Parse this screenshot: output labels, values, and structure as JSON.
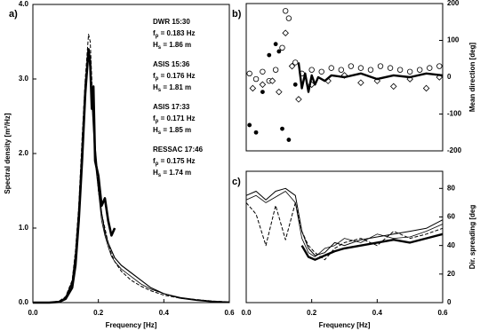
{
  "chart_data": [
    {
      "type": "line",
      "panel": "a)",
      "ylabel": "Spectral density [m²/Hz]",
      "xlabel": "Frequency  [Hz]",
      "xlim": [
        0,
        0.6
      ],
      "xticks": [
        {
          "value": 0,
          "label": "0.0"
        },
        0.2,
        0.4,
        0.6
      ],
      "ylim": [
        0,
        4
      ],
      "yticks": [
        {
          "value": 0,
          "label": "0.0"
        },
        {
          "value": 1,
          "label": "1.0"
        },
        {
          "value": 2,
          "label": "2.0"
        },
        {
          "value": 3,
          "label": "3.0"
        },
        {
          "value": 4,
          "label": "4.0"
        }
      ],
      "x": [
        0,
        0.05,
        0.08,
        0.1,
        0.12,
        0.13,
        0.14,
        0.15,
        0.16,
        0.17,
        0.175,
        0.18,
        0.185,
        0.19,
        0.2,
        0.21,
        0.22,
        0.23,
        0.24,
        0.25,
        0.27,
        0.3,
        0.33,
        0.36,
        0.4,
        0.45,
        0.5,
        0.55,
        0.6
      ],
      "series": [
        {
          "color": "#000000",
          "width": 1,
          "dash": true,
          "values": [
            0,
            0,
            0.02,
            0.08,
            0.3,
            0.7,
            1.3,
            2.2,
            3.0,
            3.6,
            3.5,
            3.0,
            2.4,
            2.0,
            1.5,
            1.2,
            1.0,
            0.8,
            0.65,
            0.55,
            0.42,
            0.3,
            0.22,
            0.16,
            0.1,
            0.06,
            0.04,
            0.02,
            0.01
          ]
        },
        {
          "color": "#000000",
          "width": 2.6,
          "dash": false,
          "values": [
            0,
            0,
            0.01,
            0.05,
            0.2,
            0.5,
            1.1,
            1.9,
            2.8,
            3.4,
            3.2,
            2.6,
            2.9,
            1.9,
            1.7,
            1.3,
            1.4,
            1.1,
            0.9,
            1.0,
            null,
            null,
            null,
            null,
            null,
            null,
            null,
            null,
            null
          ]
        },
        {
          "color": "#000000",
          "width": 0.8,
          "dash": false,
          "values": [
            0,
            0,
            0.01,
            0.06,
            0.25,
            0.6,
            1.2,
            2.0,
            2.9,
            3.3,
            3.1,
            2.7,
            2.3,
            1.9,
            1.5,
            1.1,
            0.9,
            0.75,
            0.62,
            0.55,
            0.45,
            0.35,
            0.25,
            0.18,
            0.12,
            0.07,
            0.04,
            0.02,
            0.01
          ]
        },
        {
          "color": "#000000",
          "width": 1.2,
          "dash": false,
          "values": [
            0,
            0,
            0.01,
            0.07,
            0.28,
            0.65,
            1.25,
            2.1,
            2.95,
            3.35,
            3.3,
            2.8,
            2.5,
            2.1,
            1.6,
            1.2,
            0.95,
            0.8,
            0.7,
            0.6,
            0.5,
            0.4,
            0.3,
            0.2,
            0.12,
            0.06,
            0.03,
            0.01,
            0.01
          ]
        }
      ],
      "annotations": [
        {
          "title": "DWR 15:30",
          "lines": [
            {
              "sym": "f",
              "sub": "p",
              "text": " = 0.183 Hz"
            },
            {
              "sym": "H",
              "sub": "s",
              "text": " = 1.86 m"
            }
          ]
        },
        {
          "title": "ASIS 15:36",
          "lines": [
            {
              "sym": "f",
              "sub": "p",
              "text": " = 0.176 Hz"
            },
            {
              "sym": "H",
              "sub": "s",
              "text": " = 1.81 m"
            }
          ]
        },
        {
          "title": "ASIS 17:33",
          "lines": [
            {
              "sym": "f",
              "sub": "p",
              "text": " = 0.171 Hz"
            },
            {
              "sym": "H",
              "sub": "s",
              "text": " = 1.85 m"
            }
          ]
        },
        {
          "title": "RESSAC 17:46",
          "lines": [
            {
              "sym": "f",
              "sub": "p",
              "text": " = 0.175 Hz"
            },
            {
              "sym": "H",
              "sub": "s",
              "text": " = 1.74 m"
            }
          ]
        }
      ]
    },
    {
      "type": "scatter",
      "panel": "b)",
      "ylabel": "Mean direction [deg]",
      "xlim": [
        0,
        0.6
      ],
      "ylim": [
        -200,
        200
      ],
      "yticks": [
        200,
        100,
        0,
        -100,
        -200
      ],
      "series": [
        {
          "marker": "circle-open",
          "color": "#000000",
          "x": [
            0.01,
            0.03,
            0.05,
            0.07,
            0.09,
            0.11,
            0.12,
            0.13,
            0.15,
            0.17,
            0.2,
            0.23,
            0.26,
            0.29,
            0.32,
            0.35,
            0.38,
            0.41,
            0.44,
            0.47,
            0.5,
            0.53,
            0.56,
            0.59
          ],
          "values": [
            10,
            -5,
            15,
            -10,
            20,
            80,
            180,
            160,
            40,
            10,
            20,
            15,
            25,
            20,
            30,
            25,
            20,
            30,
            25,
            20,
            15,
            20,
            25,
            30
          ]
        },
        {
          "marker": "diamond-open",
          "color": "#000000",
          "x": [
            0.02,
            0.05,
            0.08,
            0.1,
            0.12,
            0.14,
            0.16,
            0.2,
            0.25,
            0.3,
            0.35,
            0.4,
            0.45,
            0.5,
            0.55,
            0.59
          ],
          "values": [
            -30,
            -20,
            -10,
            -40,
            120,
            30,
            -60,
            -20,
            -10,
            5,
            -15,
            -10,
            -25,
            -5,
            -30,
            0
          ]
        },
        {
          "marker": "dot",
          "color": "#000000",
          "x": [
            0.01,
            0.03,
            0.05,
            0.07,
            0.09,
            0.1,
            0.11,
            0.13,
            0.15
          ],
          "values": [
            -130,
            -150,
            -40,
            60,
            90,
            70,
            -140,
            -170,
            -20
          ]
        },
        {
          "marker": "line",
          "color": "#000000",
          "width": 2.4,
          "x": [
            0.16,
            0.17,
            0.18,
            0.19,
            0.2,
            0.21,
            0.22,
            0.24,
            0.26,
            0.3,
            0.35,
            0.4,
            0.45,
            0.5,
            0.55,
            0.6
          ],
          "values": [
            40,
            -30,
            10,
            -40,
            5,
            -20,
            0,
            -10,
            5,
            0,
            10,
            -5,
            5,
            0,
            10,
            5
          ]
        }
      ]
    },
    {
      "type": "line",
      "panel": "c)",
      "ylabel": "Dir. spreading [deg",
      "xlabel": "Frequency  [Hz]",
      "xlim": [
        0,
        0.6
      ],
      "xticks": [
        {
          "value": 0,
          "label": "0.0"
        },
        0.2,
        0.4,
        0.6
      ],
      "ylim": [
        0,
        92
      ],
      "yticks": [
        0,
        20,
        40,
        60,
        80
      ],
      "x": [
        0,
        0.03,
        0.06,
        0.09,
        0.12,
        0.15,
        0.17,
        0.19,
        0.21,
        0.24,
        0.27,
        0.3,
        0.35,
        0.4,
        0.45,
        0.5,
        0.55,
        0.6
      ],
      "series": [
        {
          "color": "#000000",
          "width": 0.8,
          "dash": false,
          "values": [
            72,
            75,
            70,
            74,
            78,
            70,
            45,
            35,
            32,
            38,
            40,
            45,
            42,
            48,
            45,
            46,
            50,
            55
          ]
        },
        {
          "color": "#000000",
          "width": 1,
          "dash": true,
          "values": [
            70,
            62,
            40,
            68,
            44,
            70,
            50,
            40,
            35,
            30,
            38,
            42,
            45,
            40,
            50,
            45,
            48,
            52
          ]
        },
        {
          "color": "#000000",
          "width": 2.4,
          "dash": false,
          "values": [
            null,
            null,
            null,
            null,
            null,
            null,
            40,
            32,
            30,
            33,
            36,
            38,
            40,
            42,
            44,
            42,
            45,
            48
          ]
        },
        {
          "color": "#000000",
          "width": 1,
          "dash": false,
          "values": [
            75,
            78,
            72,
            78,
            80,
            75,
            50,
            38,
            33,
            35,
            42,
            40,
            44,
            46,
            48,
            50,
            52,
            58
          ]
        }
      ]
    }
  ]
}
